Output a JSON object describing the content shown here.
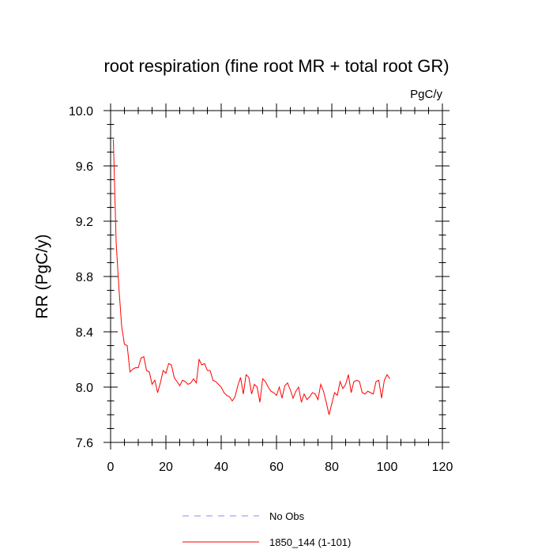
{
  "chart_data": {
    "type": "line",
    "title": "root respiration (fine root MR + total root GR)",
    "units_label": "PgC/y",
    "xlabel": "",
    "ylabel": "RR  (PgC/y)",
    "xlim": [
      0,
      120
    ],
    "ylim": [
      7.6,
      10.0
    ],
    "x_ticks": [
      0,
      20,
      40,
      60,
      80,
      100,
      120
    ],
    "y_ticks": [
      7.6,
      8.0,
      8.4,
      8.8,
      9.2,
      9.6,
      10.0
    ],
    "y_tick_labels": [
      "7.6",
      "8.0",
      "8.4",
      "8.8",
      "9.2",
      "9.6",
      "10.0"
    ],
    "grid": false,
    "legend_position": "bottom",
    "series": [
      {
        "name": "No Obs",
        "color": "#8888ff",
        "dash": "dashed",
        "x": [],
        "y": []
      },
      {
        "name": "1850_144 (1-101)",
        "color": "#ff0000",
        "dash": "solid",
        "x": [
          1,
          2,
          3,
          4,
          5,
          6,
          7,
          8,
          9,
          10,
          11,
          12,
          13,
          14,
          15,
          16,
          17,
          18,
          19,
          20,
          21,
          22,
          23,
          24,
          25,
          26,
          27,
          28,
          29,
          30,
          31,
          32,
          33,
          34,
          35,
          36,
          37,
          38,
          39,
          40,
          41,
          42,
          43,
          44,
          45,
          46,
          47,
          48,
          49,
          50,
          51,
          52,
          53,
          54,
          55,
          56,
          57,
          58,
          59,
          60,
          61,
          62,
          63,
          64,
          65,
          66,
          67,
          68,
          69,
          70,
          71,
          72,
          73,
          74,
          75,
          76,
          77,
          78,
          79,
          80,
          81,
          82,
          83,
          84,
          85,
          86,
          87,
          88,
          89,
          90,
          91,
          92,
          93,
          94,
          95,
          96,
          97,
          98,
          99,
          100,
          101
        ],
        "y": [
          9.79,
          9.05,
          8.72,
          8.44,
          8.31,
          8.3,
          8.11,
          8.13,
          8.14,
          8.14,
          8.21,
          8.22,
          8.12,
          8.11,
          8.02,
          8.05,
          7.96,
          8.03,
          8.12,
          8.1,
          8.17,
          8.16,
          8.07,
          8.04,
          8.01,
          8.05,
          8.04,
          8.02,
          8.03,
          8.06,
          8.03,
          8.2,
          8.16,
          8.17,
          8.12,
          8.12,
          8.05,
          8.04,
          8.02,
          8.0,
          7.96,
          7.94,
          7.93,
          7.9,
          7.93,
          8.01,
          8.07,
          7.95,
          8.09,
          8.07,
          7.95,
          8.02,
          8.0,
          7.89,
          8.06,
          8.04,
          8.0,
          7.97,
          7.96,
          7.94,
          8.0,
          7.92,
          8.01,
          8.03,
          7.98,
          7.92,
          7.97,
          8.0,
          7.89,
          7.95,
          7.91,
          7.93,
          7.96,
          7.95,
          7.91,
          8.02,
          7.97,
          7.89,
          7.8,
          7.88,
          7.96,
          7.94,
          8.04,
          7.99,
          8.02,
          8.09,
          7.96,
          8.04,
          8.05,
          8.04,
          7.96,
          7.95,
          7.97,
          7.96,
          7.95,
          8.04,
          8.05,
          7.92,
          8.05,
          8.09,
          8.06
        ]
      }
    ]
  }
}
